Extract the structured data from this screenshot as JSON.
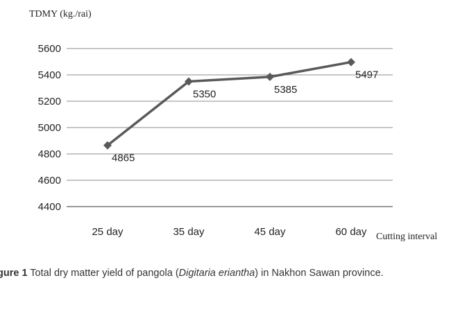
{
  "chart_data": {
    "type": "line",
    "ylabel": "TDMY (kg./rai)",
    "xlabel": "Cutting interval",
    "categories": [
      "25 day",
      "35 day",
      "45 day",
      "60 day"
    ],
    "values": [
      4865,
      5350,
      5385,
      5497
    ],
    "data_labels": [
      "4865",
      "5350",
      "5385",
      "5497"
    ],
    "ylim": [
      4400,
      5600
    ],
    "yticks": [
      "4400",
      "4600",
      "4800",
      "5000",
      "5200",
      "5400",
      "5600"
    ],
    "grid": "horizontal",
    "marker": "diamond",
    "line_color": "#595959",
    "grid_color": "#8c8c8c"
  },
  "caption": {
    "figure": "gure 1",
    "before": " Total dry matter yield of pangola (",
    "species": "Digitaria eriantha",
    "after": ") in Nakhon Sawan province."
  }
}
